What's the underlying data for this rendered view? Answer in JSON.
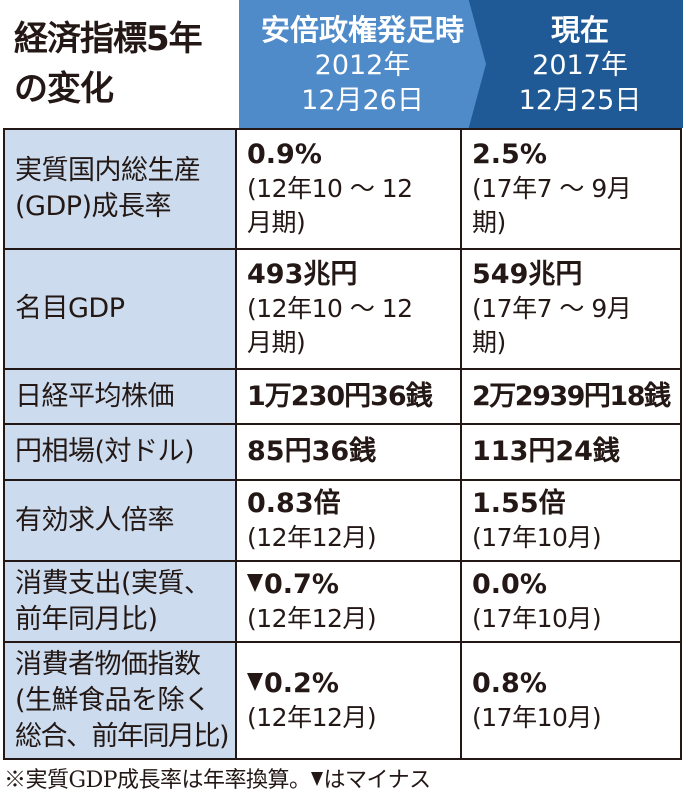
{
  "title": [
    "経済指標5年",
    "の変化"
  ],
  "headers": {
    "start": [
      "安倍政権発足時",
      "2012年",
      "12月26日"
    ],
    "now": [
      "現在",
      "2017年",
      "12月25日"
    ]
  },
  "rows": [
    {
      "label": [
        "実質国内総生産",
        "(GDP)成長率"
      ],
      "start": {
        "main": "0.9%",
        "note": [
          "(12年10 ～ 12",
          "月期)"
        ]
      },
      "now": {
        "main": "2.5%",
        "note": [
          "(17年7 ～ 9月",
          "期)"
        ]
      }
    },
    {
      "label": [
        "名目GDP"
      ],
      "start": {
        "main": "493兆円",
        "note": [
          "(12年10 ～ 12",
          "月期)"
        ]
      },
      "now": {
        "main": "549兆円",
        "note": [
          "(17年7 ～ 9月",
          "期)"
        ]
      }
    },
    {
      "label": [
        "日経平均株価"
      ],
      "start": {
        "main": "1万230円36銭",
        "note": []
      },
      "now": {
        "main": "2万2939円18銭",
        "note": []
      }
    },
    {
      "label": [
        "円相場(対ドル)"
      ],
      "start": {
        "main": "85円36銭",
        "note": []
      },
      "now": {
        "main": "113円24銭",
        "note": []
      }
    },
    {
      "label": [
        "有効求人倍率"
      ],
      "start": {
        "main": "0.83倍",
        "note": [
          "(12年12月)"
        ]
      },
      "now": {
        "main": "1.55倍",
        "note": [
          "(17年10月)"
        ]
      }
    },
    {
      "label": [
        "消費支出(実質、",
        "前年同月比)"
      ],
      "start": {
        "main": "0.7%",
        "note": [
          "(12年12月)"
        ]
      },
      "now": {
        "main": "0.0%",
        "note": [
          "(17年10月)"
        ]
      }
    },
    {
      "label": [
        "消費者物価指数",
        "(生鮮食品を除く",
        "総合、前年同月比)"
      ],
      "start": {
        "main": "0.2%",
        "note": [
          "(12年12月)"
        ]
      },
      "now": {
        "main": "0.8%",
        "note": [
          "(17年10月)"
        ]
      }
    }
  ],
  "footnote": [
    "※実質GDP成長率は年率換算。",
    "はマイナス"
  ],
  "colors": {
    "label_bg": "#ccdcee",
    "start_header": "#4f8ac9",
    "now_header": "#1f5a96"
  }
}
